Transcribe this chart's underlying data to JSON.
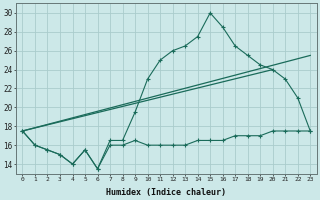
{
  "title": "",
  "xlabel": "Humidex (Indice chaleur)",
  "bg_color": "#cce8e8",
  "grid_color": "#aacccc",
  "line_color": "#1a6b5a",
  "xlim": [
    -0.5,
    23.5
  ],
  "ylim": [
    13.0,
    31.0
  ],
  "yticks": [
    14,
    16,
    18,
    20,
    22,
    24,
    26,
    28,
    30
  ],
  "xticks": [
    0,
    1,
    2,
    3,
    4,
    5,
    6,
    7,
    8,
    9,
    10,
    11,
    12,
    13,
    14,
    15,
    16,
    17,
    18,
    19,
    20,
    21,
    22,
    23
  ],
  "series_main_x": [
    0,
    1,
    2,
    3,
    4,
    5,
    6,
    7,
    8,
    9,
    10,
    11,
    12,
    13,
    14,
    15,
    16,
    17,
    18,
    19,
    20,
    21,
    22,
    23
  ],
  "series_main_y": [
    17.5,
    16.0,
    15.5,
    15.0,
    14.0,
    15.5,
    13.5,
    16.5,
    16.5,
    19.5,
    23.0,
    25.0,
    26.0,
    26.5,
    27.5,
    30.0,
    28.5,
    26.5,
    25.5,
    24.5,
    24.0,
    23.0,
    21.0,
    17.5
  ],
  "series_flat_x": [
    0,
    1,
    2,
    3,
    4,
    5,
    6,
    7,
    8,
    9,
    10,
    11,
    12,
    13,
    14,
    15,
    16,
    17,
    18,
    19,
    20,
    21,
    22,
    23
  ],
  "series_flat_y": [
    17.5,
    16.0,
    15.5,
    15.0,
    14.0,
    15.5,
    13.5,
    16.0,
    16.0,
    16.5,
    16.0,
    16.0,
    16.0,
    16.0,
    16.5,
    16.5,
    16.5,
    17.0,
    17.0,
    17.0,
    17.5,
    17.5,
    17.5,
    17.5
  ],
  "series_line1_x": [
    0,
    23
  ],
  "series_line1_y": [
    17.5,
    25.5
  ],
  "series_line2_x": [
    0,
    20
  ],
  "series_line2_y": [
    17.5,
    24.0
  ]
}
